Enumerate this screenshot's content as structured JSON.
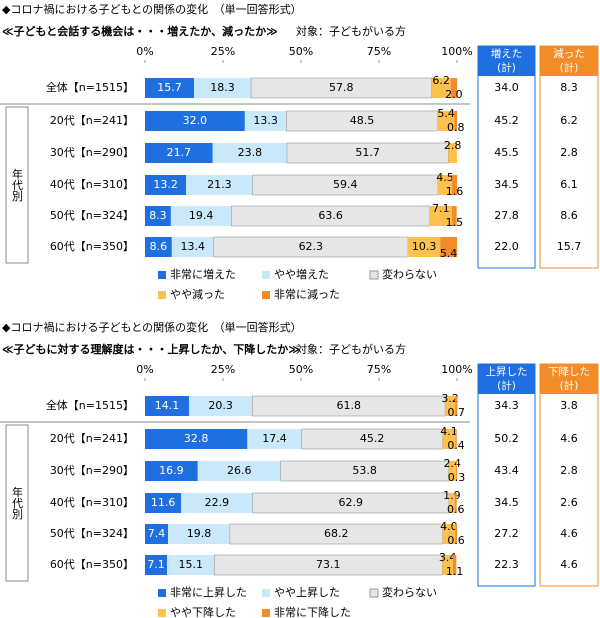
{
  "chart_data": [
    {
      "type": "stacked_bar_horizontal",
      "title": "◆コロナ禍における子どもとの関係の変化　（単一回答形式）",
      "subtitle": "≪子どもと会話する機会は・・・増えたか、減ったか≫",
      "note": "対象：子どもがいる方",
      "group_label": "年代別",
      "categories": [
        "全体【n=1515】",
        "20代【n=241】",
        "30代【n=290】",
        "40代【n=310】",
        "50代【n=324】",
        "60代【n=350】"
      ],
      "xlim": [
        0,
        100
      ],
      "xticks": [
        {
          "value": 0,
          "label": "0%"
        },
        {
          "value": 25,
          "label": "25%"
        },
        {
          "value": 50,
          "label": "50%"
        },
        {
          "value": 75,
          "label": "75%"
        },
        {
          "value": 100,
          "label": "100%"
        }
      ],
      "series": [
        {
          "name": "非常に増えた",
          "color": "#1f6fe0",
          "values": [
            15.7,
            32.0,
            21.7,
            13.2,
            8.3,
            8.6
          ],
          "value_labels": [
            "15.7",
            "32.0",
            "21.7",
            "13.2",
            "8.3",
            "8.6"
          ]
        },
        {
          "name": "やや増えた",
          "color": "#c9e9fb",
          "values": [
            18.3,
            13.3,
            23.8,
            21.3,
            19.4,
            13.4
          ],
          "value_labels": [
            "18.3",
            "13.3",
            "23.8",
            "21.3",
            "19.4",
            "13.4"
          ]
        },
        {
          "name": "変わらない",
          "color": "#e6e6e6",
          "values": [
            57.8,
            48.5,
            51.7,
            59.4,
            63.6,
            62.3
          ],
          "value_labels": [
            "57.8",
            "48.5",
            "51.7",
            "59.4",
            "63.6",
            "62.3"
          ]
        },
        {
          "name": "やや減った",
          "color": "#ffc04d",
          "values": [
            6.2,
            5.4,
            2.8,
            4.5,
            7.1,
            10.3
          ],
          "value_labels": [
            "6.2",
            "5.4",
            "2.8",
            "4.5",
            "7.1",
            "10.3"
          ]
        },
        {
          "name": "非常に減った",
          "color": "#f28c28",
          "values": [
            2.0,
            0.8,
            0.0,
            1.6,
            1.5,
            5.4
          ],
          "value_labels": [
            "2.0",
            "0.8",
            null,
            "1.6",
            "1.5",
            "5.4"
          ]
        }
      ],
      "summary": [
        {
          "name": [
            "増えた",
            "(計)"
          ],
          "color": "#1f6fe0",
          "values": [
            34.0,
            45.2,
            45.5,
            34.5,
            27.8,
            22.0
          ],
          "value_labels": [
            "34.0",
            "45.2",
            "45.5",
            "34.5",
            "27.8",
            "22.0"
          ]
        },
        {
          "name": [
            "減った",
            "(計)"
          ],
          "color": "#f28c28",
          "values": [
            8.3,
            6.2,
            2.8,
            6.1,
            8.6,
            15.7
          ],
          "value_labels": [
            "8.3",
            "6.2",
            "2.8",
            "6.1",
            "8.6",
            "15.7"
          ]
        }
      ]
    },
    {
      "type": "stacked_bar_horizontal",
      "title": "◆コロナ禍における子どもとの関係の変化　（単一回答形式）",
      "subtitle": "≪子どもに対する理解度は・・・上昇したか、下降したか≫",
      "note": "対象：子どもがいる方",
      "group_label": "年代別",
      "categories": [
        "全体【n=1515】",
        "20代【n=241】",
        "30代【n=290】",
        "40代【n=310】",
        "50代【n=324】",
        "60代【n=350】"
      ],
      "xlim": [
        0,
        100
      ],
      "xticks": [
        {
          "value": 0,
          "label": "0%"
        },
        {
          "value": 25,
          "label": "25%"
        },
        {
          "value": 50,
          "label": "50%"
        },
        {
          "value": 75,
          "label": "75%"
        },
        {
          "value": 100,
          "label": "100%"
        }
      ],
      "series": [
        {
          "name": "非常に上昇した",
          "color": "#1f6fe0",
          "values": [
            14.1,
            32.8,
            16.9,
            11.6,
            7.4,
            7.1
          ],
          "value_labels": [
            "14.1",
            "32.8",
            "16.9",
            "11.6",
            "7.4",
            "7.1"
          ]
        },
        {
          "name": "やや上昇した",
          "color": "#c9e9fb",
          "values": [
            20.3,
            17.4,
            26.6,
            22.9,
            19.8,
            15.1
          ],
          "value_labels": [
            "20.3",
            "17.4",
            "26.6",
            "22.9",
            "19.8",
            "15.1"
          ]
        },
        {
          "name": "変わらない",
          "color": "#e6e6e6",
          "values": [
            61.8,
            45.2,
            53.8,
            62.9,
            68.2,
            73.1
          ],
          "value_labels": [
            "61.8",
            "45.2",
            "53.8",
            "62.9",
            "68.2",
            "73.1"
          ]
        },
        {
          "name": "やや下降した",
          "color": "#ffc04d",
          "values": [
            3.2,
            4.1,
            2.4,
            1.9,
            4.0,
            3.4
          ],
          "value_labels": [
            "3.2",
            "4.1",
            "2.4",
            "1.9",
            "4.0",
            "3.4"
          ]
        },
        {
          "name": "非常に下降した",
          "color": "#f28c28",
          "values": [
            0.7,
            0.4,
            0.3,
            0.6,
            0.6,
            1.1
          ],
          "value_labels": [
            "0.7",
            "0.4",
            "0.3",
            "0.6",
            "0.6",
            "1.1"
          ]
        }
      ],
      "summary": [
        {
          "name": [
            "上昇した",
            "(計)"
          ],
          "color": "#1f6fe0",
          "values": [
            34.3,
            50.2,
            43.4,
            34.5,
            27.2,
            22.3
          ],
          "value_labels": [
            "34.3",
            "50.2",
            "43.4",
            "34.5",
            "27.2",
            "22.3"
          ]
        },
        {
          "name": [
            "下降した",
            "(計)"
          ],
          "color": "#f28c28",
          "values": [
            3.8,
            4.6,
            2.8,
            2.6,
            4.6,
            4.6
          ],
          "value_labels": [
            "3.8",
            "4.6",
            "2.8",
            "2.6",
            "4.6",
            "4.6"
          ]
        }
      ]
    }
  ]
}
